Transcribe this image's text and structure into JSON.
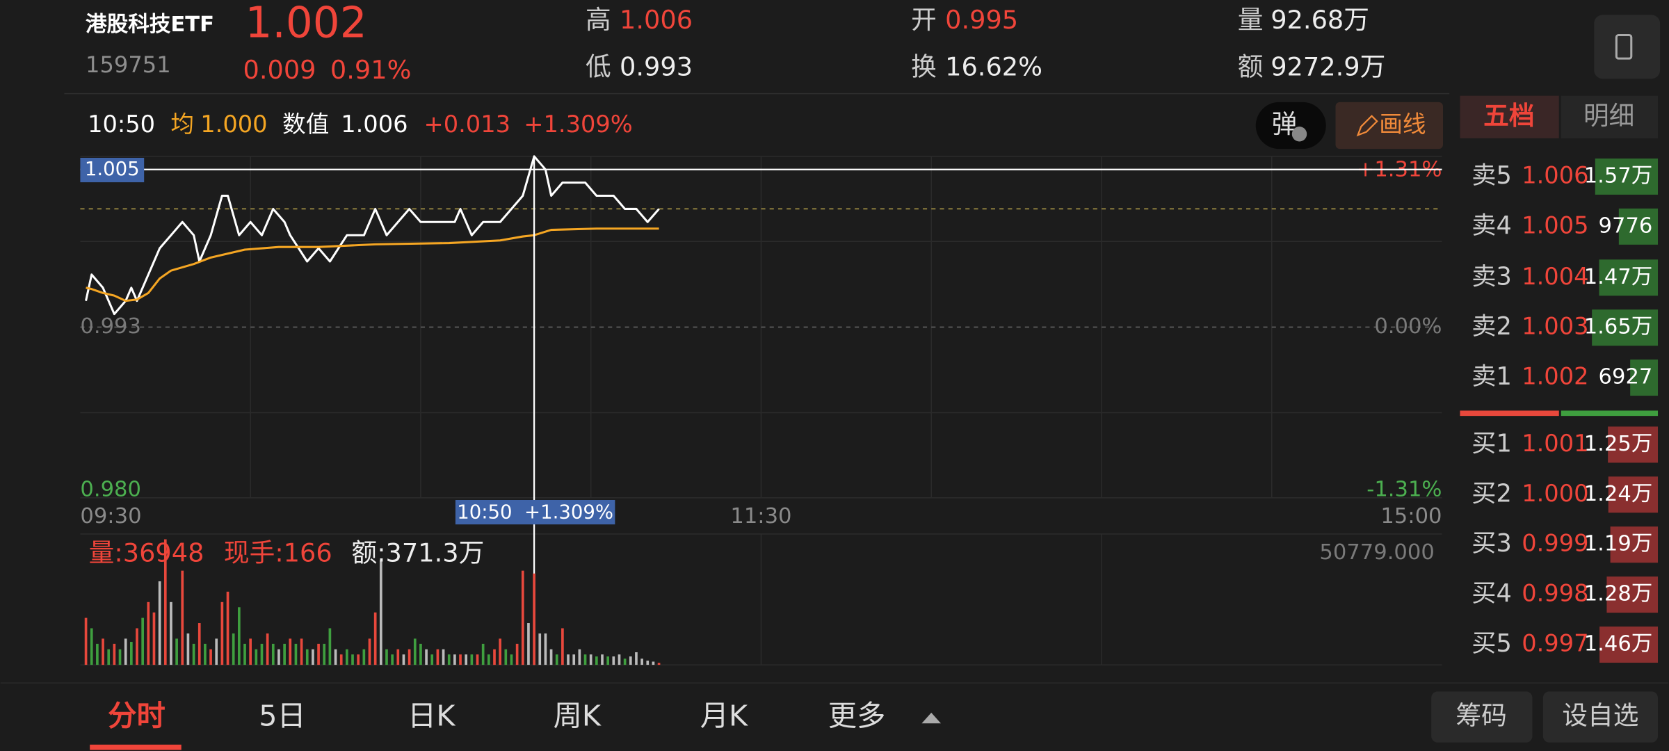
{
  "header": {
    "name": "港股科技ETF",
    "code": "159751",
    "price": 1.002,
    "change": "0.009",
    "change_pct": "0.91%",
    "high_label": "高",
    "high": "1.006",
    "low_label": "低",
    "low": "0.993",
    "open_label": "开",
    "open": "0.995",
    "turnover_label": "换",
    "turnover": "16.62%",
    "volume_label": "量",
    "volume": "92.68万",
    "amount_label": "额",
    "amount": "9272.9万"
  },
  "crosshair": {
    "time": "10:50",
    "avg_label": "均",
    "avg": "1.000",
    "value_label": "数值",
    "value": "1.006",
    "change": "+0.013",
    "change_pct": "+1.309%",
    "price": 1.005,
    "tag": "10:50  +1.309%",
    "volume": "量:36948",
    "hand": "现手:166",
    "amount": "额:371.3万"
  },
  "buttons": {
    "danmu": "弹",
    "draw": "画线"
  },
  "chart_data": [
    {
      "type": "line",
      "xlim": [
        0,
        240
      ],
      "xticks": [
        {
          "value": 0,
          "label": "09:30"
        },
        {
          "value": 120,
          "label": "11:30"
        },
        {
          "value": 240,
          "label": "15:00"
        }
      ],
      "ylim": [
        0.98,
        1.006
      ],
      "yticks": [
        0.993,
        {
          "value": 0.98,
          "label": "0.980"
        }
      ],
      "y2lim": [
        -1.31,
        1.31
      ],
      "y2ticks": [
        {
          "value": 1.31,
          "label": "+1.31%"
        },
        {
          "value": 0,
          "label": "0.00%"
        },
        {
          "value": -1.31,
          "label": "-1.31%"
        }
      ],
      "series": [
        {
          "color": "#ffffff",
          "x": [
            1,
            2,
            4,
            6,
            8,
            9,
            10,
            12,
            14,
            16,
            18,
            20,
            21,
            23,
            25,
            26,
            28,
            30,
            32,
            34,
            36,
            37,
            40,
            42,
            44,
            47,
            50,
            52,
            54,
            56,
            58,
            60,
            63,
            66,
            67,
            69,
            71,
            74,
            76,
            78,
            80,
            82,
            83,
            85,
            87,
            89,
            91,
            94,
            96,
            98,
            100,
            102
          ],
          "values": [
            0.995,
            0.997,
            0.996,
            0.994,
            0.995,
            0.996,
            0.995,
            0.997,
            0.999,
            1.0,
            1.001,
            1.0,
            0.998,
            1.0,
            1.003,
            1.003,
            1.0,
            1.001,
            1.0,
            1.002,
            1.001,
            1.0,
            0.998,
            0.999,
            0.998,
            1.0,
            1.0,
            1.002,
            1.0,
            1.001,
            1.002,
            1.001,
            1.001,
            1.001,
            1.002,
            1.0,
            1.001,
            1.001,
            1.002,
            1.003,
            1.006,
            1.005,
            1.003,
            1.004,
            1.004,
            1.004,
            1.003,
            1.003,
            1.002,
            1.002,
            1.001,
            1.002
          ]
        },
        {
          "color": "#f5a623",
          "x": [
            1,
            2,
            4,
            6,
            8,
            10,
            12,
            14,
            16,
            20,
            23,
            29,
            35,
            42,
            52,
            65,
            74,
            78,
            80,
            83,
            91,
            102
          ],
          "values": [
            0.996,
            0.9959,
            0.9956,
            0.9954,
            0.995,
            0.9951,
            0.9956,
            0.9967,
            0.9973,
            0.9978,
            0.9983,
            0.9989,
            0.9991,
            0.9991,
            0.9993,
            0.9994,
            0.9996,
            0.9999,
            1.0,
            1.0004,
            1.0005,
            1.0005
          ]
        }
      ]
    },
    {
      "type": "bar",
      "xlim": [
        0,
        240
      ],
      "ylim": [
        0,
        50779
      ],
      "yticks": [
        {
          "value": 50779,
          "label": "50779.000"
        }
      ],
      "series": [
        {
          "color": "#e8483c",
          "x": [
            1,
            4,
            6,
            10,
            12,
            13,
            15,
            18,
            21,
            23,
            25,
            26,
            30,
            33,
            37,
            39,
            42,
            46,
            49,
            51,
            52,
            56,
            58,
            63,
            67,
            70,
            73,
            74,
            77,
            78,
            80,
            85,
            102
          ],
          "values": [
            19000,
            10600,
            8500,
            14800,
            25400,
            21200,
            50779,
            38100,
            16900,
            6300,
            25400,
            29600,
            10600,
            12700,
            10600,
            10600,
            8500,
            4200,
            4200,
            10600,
            21200,
            6300,
            6300,
            6300,
            4200,
            4200,
            6300,
            10600,
            8500,
            38100,
            36948,
            14800,
            800
          ]
        },
        {
          "color": "#3f9f3f",
          "x": [
            2,
            3,
            5,
            7,
            9,
            11,
            17,
            20,
            22,
            27,
            28,
            29,
            31,
            32,
            34,
            36,
            38,
            40,
            43,
            44,
            47,
            48,
            50,
            54,
            55,
            59,
            60,
            62,
            65,
            69,
            71,
            72,
            75,
            76,
            84,
            89,
            91,
            93,
            96
          ],
          "values": [
            14800,
            8500,
            6300,
            6300,
            9300,
            19000,
            10600,
            8500,
            8500,
            12700,
            23300,
            8500,
            6300,
            8500,
            8500,
            8500,
            8500,
            6300,
            8500,
            14800,
            6300,
            4200,
            6300,
            6300,
            4200,
            10600,
            8500,
            4200,
            4200,
            4200,
            8500,
            4200,
            6300,
            4200,
            4200,
            4200,
            3400,
            3400,
            2500
          ]
        },
        {
          "color": "#bbbbbb",
          "x": [
            8,
            14,
            16,
            19,
            24,
            35,
            41,
            45,
            53,
            57,
            61,
            64,
            66,
            68,
            79,
            81,
            82,
            83,
            86,
            87,
            88,
            90,
            92,
            94,
            95,
            97,
            98,
            99,
            100,
            101
          ],
          "values": [
            10600,
            33800,
            25400,
            12700,
            10600,
            6300,
            6300,
            6300,
            42300,
            4200,
            6300,
            6300,
            4200,
            4200,
            16900,
            12700,
            12700,
            6300,
            4200,
            4200,
            6300,
            4200,
            4200,
            3400,
            4200,
            3400,
            5100,
            2500,
            1700,
            1300
          ]
        }
      ]
    }
  ],
  "order_book": {
    "tabs": [
      "五档",
      "明细"
    ],
    "sell": {
      "labels": [
        "卖5",
        "卖4",
        "卖3",
        "卖2",
        "卖1"
      ],
      "prices": [
        "1.006",
        "1.005",
        "1.004",
        "1.003",
        "1.002"
      ],
      "values": [
        15700,
        9776,
        14700,
        16500,
        6927
      ],
      "value_labels": [
        "1.57万",
        "9776",
        "1.47万",
        "1.65万",
        "6927"
      ],
      "color": "#2e6a2e"
    },
    "buy": {
      "labels": [
        "买1",
        "买2",
        "买3",
        "买4",
        "买5"
      ],
      "prices": [
        "1.001",
        "1.000",
        "0.999",
        "0.998",
        "0.997"
      ],
      "values": [
        12500,
        12400,
        11900,
        12800,
        14600
      ],
      "value_labels": [
        "1.25万",
        "1.24万",
        "1.19万",
        "1.28万",
        "1.46万"
      ],
      "color": "#8a2f2f"
    }
  },
  "footer": {
    "tabs": [
      "分时",
      "5日",
      "日K",
      "周K",
      "月K",
      "更多"
    ],
    "buttons": [
      "筹码",
      "设自选"
    ]
  }
}
